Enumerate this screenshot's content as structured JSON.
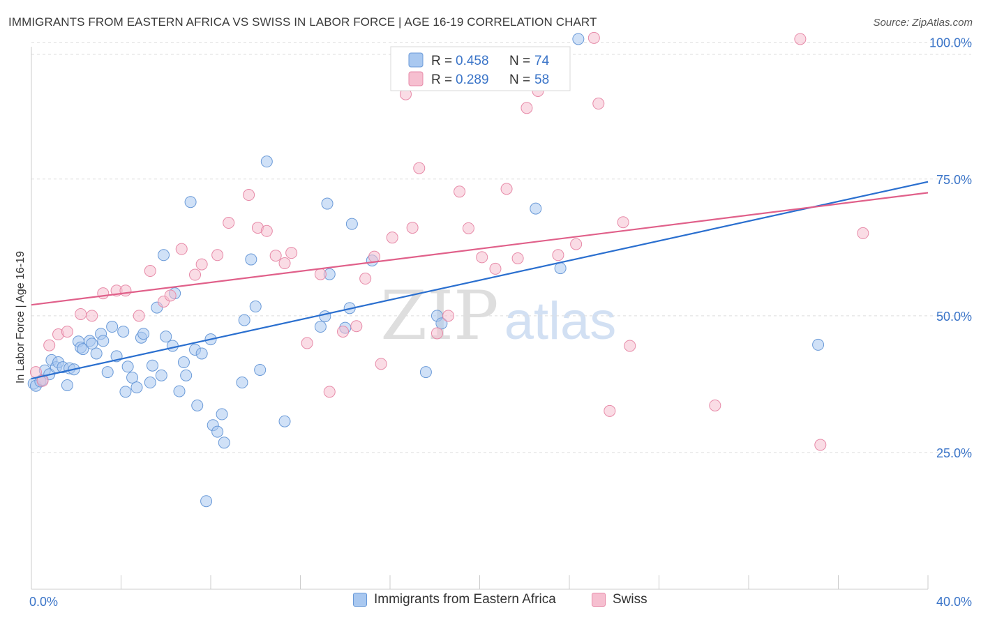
{
  "header": {
    "title": "IMMIGRANTS FROM EASTERN AFRICA VS SWISS IN LABOR FORCE | AGE 16-19 CORRELATION CHART",
    "source": "Source: ZipAtlas.com"
  },
  "watermark": {
    "zip": "ZIP",
    "atlas": "atlas"
  },
  "colors": {
    "blue_fill": "#a9c8f0",
    "blue_stroke": "#6a9ad8",
    "blue_line": "#2a6fcf",
    "pink_fill": "#f6bfd0",
    "pink_stroke": "#e78aa8",
    "pink_line": "#e0608a",
    "axis_label": "#3a74c8",
    "grid": "#dddddd"
  },
  "legend": {
    "rows": [
      {
        "r_label": "R =",
        "r_value": "0.458",
        "n_label": "N =",
        "n_value": "74"
      },
      {
        "r_label": "R =",
        "r_value": "0.289",
        "n_label": "N =",
        "n_value": "58"
      }
    ]
  },
  "chart_data": {
    "type": "scatter",
    "title": "IMMIGRANTS FROM EASTERN AFRICA VS SWISS IN LABOR FORCE | AGE 16-19 CORRELATION CHART",
    "xlabel": "",
    "ylabel": "In Labor Force | Age 16-19",
    "xlim": [
      0,
      40
    ],
    "ylim": [
      0,
      102
    ],
    "x_tick_labels": [
      "0.0%",
      "40.0%"
    ],
    "y_ticks": [
      25,
      50,
      75,
      100
    ],
    "y_tick_labels": [
      "25.0%",
      "50.0%",
      "75.0%",
      "100.0%"
    ],
    "grid": true,
    "legend_position": "top-center",
    "series": [
      {
        "name": "Immigrants from Eastern Africa",
        "color": "#a9c8f0",
        "trend": {
          "x": [
            0,
            40
          ],
          "y": [
            38.5,
            74.5
          ]
        },
        "points": [
          [
            0.1,
            37.6
          ],
          [
            0.2,
            37.2
          ],
          [
            0.4,
            38.0
          ],
          [
            0.5,
            38.3
          ],
          [
            0.6,
            40.0
          ],
          [
            0.8,
            39.3
          ],
          [
            0.9,
            41.9
          ],
          [
            1.1,
            40.6
          ],
          [
            1.2,
            41.5
          ],
          [
            1.4,
            40.6
          ],
          [
            1.6,
            37.3
          ],
          [
            1.7,
            40.4
          ],
          [
            1.9,
            40.2
          ],
          [
            2.1,
            45.3
          ],
          [
            2.2,
            44.2
          ],
          [
            2.3,
            43.9
          ],
          [
            2.6,
            45.4
          ],
          [
            2.7,
            44.9
          ],
          [
            2.9,
            43.1
          ],
          [
            3.1,
            46.7
          ],
          [
            3.2,
            45.4
          ],
          [
            3.4,
            39.7
          ],
          [
            3.6,
            48.0
          ],
          [
            3.8,
            42.6
          ],
          [
            4.1,
            47.1
          ],
          [
            4.2,
            36.1
          ],
          [
            4.3,
            40.7
          ],
          [
            4.5,
            38.7
          ],
          [
            4.7,
            36.9
          ],
          [
            4.9,
            46.0
          ],
          [
            5.0,
            46.7
          ],
          [
            5.3,
            37.8
          ],
          [
            5.4,
            40.9
          ],
          [
            5.6,
            51.5
          ],
          [
            5.8,
            39.1
          ],
          [
            5.9,
            61.1
          ],
          [
            6.0,
            46.2
          ],
          [
            6.3,
            44.5
          ],
          [
            6.4,
            54.1
          ],
          [
            6.6,
            36.2
          ],
          [
            6.8,
            41.5
          ],
          [
            6.9,
            39.1
          ],
          [
            7.1,
            70.8
          ],
          [
            7.3,
            43.8
          ],
          [
            7.4,
            33.6
          ],
          [
            7.6,
            43.1
          ],
          [
            7.8,
            16.1
          ],
          [
            8.0,
            45.7
          ],
          [
            8.1,
            30.0
          ],
          [
            8.3,
            28.8
          ],
          [
            8.5,
            32.0
          ],
          [
            8.6,
            26.8
          ],
          [
            9.4,
            37.8
          ],
          [
            9.5,
            49.2
          ],
          [
            9.8,
            60.3
          ],
          [
            10.0,
            51.7
          ],
          [
            10.2,
            40.1
          ],
          [
            10.5,
            78.2
          ],
          [
            11.3,
            30.7
          ],
          [
            12.9,
            48.0
          ],
          [
            13.1,
            49.9
          ],
          [
            13.2,
            70.5
          ],
          [
            13.3,
            57.6
          ],
          [
            14.0,
            47.8
          ],
          [
            14.2,
            51.4
          ],
          [
            14.3,
            66.8
          ],
          [
            15.2,
            60.1
          ],
          [
            17.6,
            39.7
          ],
          [
            18.1,
            50.0
          ],
          [
            18.3,
            48.6
          ],
          [
            22.5,
            69.6
          ],
          [
            23.6,
            58.7
          ],
          [
            24.4,
            100.6
          ],
          [
            35.1,
            44.7
          ]
        ]
      },
      {
        "name": "Swiss",
        "color": "#f6bfd0",
        "trend": {
          "x": [
            0,
            40
          ],
          "y": [
            52.0,
            72.5
          ]
        },
        "points": [
          [
            0.2,
            39.7
          ],
          [
            0.5,
            38.1
          ],
          [
            0.8,
            44.6
          ],
          [
            1.2,
            46.6
          ],
          [
            1.6,
            47.1
          ],
          [
            2.2,
            50.3
          ],
          [
            2.7,
            50.0
          ],
          [
            3.2,
            54.1
          ],
          [
            3.8,
            54.6
          ],
          [
            4.2,
            54.6
          ],
          [
            4.8,
            50.0
          ],
          [
            5.3,
            58.2
          ],
          [
            5.9,
            52.6
          ],
          [
            6.2,
            53.7
          ],
          [
            6.7,
            62.2
          ],
          [
            7.3,
            57.5
          ],
          [
            7.6,
            59.4
          ],
          [
            8.3,
            61.1
          ],
          [
            8.8,
            67.0
          ],
          [
            9.7,
            72.1
          ],
          [
            10.1,
            66.1
          ],
          [
            10.5,
            65.5
          ],
          [
            10.9,
            61.0
          ],
          [
            11.3,
            59.6
          ],
          [
            11.6,
            61.5
          ],
          [
            12.3,
            45.0
          ],
          [
            12.9,
            57.6
          ],
          [
            13.3,
            36.1
          ],
          [
            13.9,
            47.1
          ],
          [
            14.5,
            48.1
          ],
          [
            14.9,
            56.8
          ],
          [
            15.3,
            60.8
          ],
          [
            15.6,
            41.2
          ],
          [
            16.1,
            64.3
          ],
          [
            16.7,
            90.5
          ],
          [
            17.0,
            66.1
          ],
          [
            17.3,
            77.0
          ],
          [
            18.1,
            46.8
          ],
          [
            18.6,
            50.0
          ],
          [
            19.1,
            72.7
          ],
          [
            19.5,
            66.0
          ],
          [
            20.1,
            60.7
          ],
          [
            20.7,
            58.6
          ],
          [
            21.2,
            73.2
          ],
          [
            21.7,
            60.5
          ],
          [
            22.1,
            88.0
          ],
          [
            22.6,
            91.1
          ],
          [
            23.5,
            61.1
          ],
          [
            24.3,
            63.1
          ],
          [
            25.1,
            100.8
          ],
          [
            25.3,
            88.8
          ],
          [
            25.8,
            32.6
          ],
          [
            26.4,
            67.1
          ],
          [
            26.7,
            44.5
          ],
          [
            30.5,
            33.6
          ],
          [
            34.3,
            100.6
          ],
          [
            35.2,
            26.4
          ],
          [
            37.1,
            65.1
          ]
        ]
      }
    ]
  }
}
